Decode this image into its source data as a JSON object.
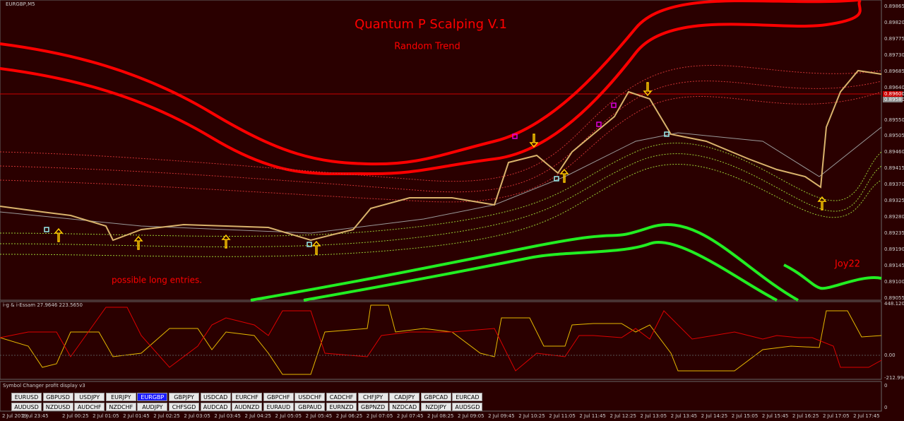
{
  "chart": {
    "symbol": "EURGBP,M5",
    "title": "Quantum P Scalping V.1",
    "subtitle": "Random Trend",
    "annotation": "possible long entries.",
    "author": "Joy22",
    "price_labels": [
      "0.89865",
      "0.89820",
      "0.89775",
      "0.89730",
      "0.89685",
      "0.89640",
      "0.89600",
      "0.89580",
      "0.89550",
      "0.89505",
      "0.89460",
      "0.89415",
      "0.89370",
      "0.89325",
      "0.89280",
      "0.89235",
      "0.89190",
      "0.89145",
      "0.89100",
      "0.89055"
    ],
    "time_labels": [
      "2 Jul 2019",
      "1 Jul 23:45",
      "2 Jul 00:25",
      "2 Jul 01:05",
      "2 Jul 01:45",
      "2 Jul 02:25",
      "2 Jul 03:05",
      "2 Jul 03:45",
      "2 Jul 04:25",
      "2 Jul 05:05",
      "2 Jul 05:45",
      "2 Jul 06:25",
      "2 Jul 07:05",
      "2 Jul 07:45",
      "2 Jul 08:25",
      "2 Jul 09:05",
      "2 Jul 09:45",
      "2 Jul 10:25",
      "2 Jul 11:05",
      "2 Jul 11:45",
      "2 Jul 12:25",
      "2 Jul 13:05",
      "2 Jul 13:45",
      "2 Jul 14:25",
      "2 Jul 15:05",
      "2 Jul 15:45",
      "2 Jul 16:25",
      "2 Jul 17:05",
      "2 Jul 17:45"
    ]
  },
  "indicator": {
    "label": "i-g & i-Essam 27.9646 223.5650",
    "axis_labels": [
      "448.1208",
      "0.00",
      "-212.9902"
    ]
  },
  "panel": {
    "label": "Symbol Changer profit display v3",
    "axis_labels": [
      "0",
      "0"
    ],
    "rows": [
      [
        "EURUSD",
        "GBPUSD",
        "USDJPY",
        "EURJPY",
        "EURGBP",
        "GBPJPY",
        "USDCAD",
        "EURCHF",
        "GBPCHF",
        "USDCHF",
        "CADCHF",
        "CHFJPY",
        "CADJPY",
        "GBPCAD",
        "EURCAD"
      ],
      [
        "AUDUSD",
        "NZDUSD",
        "AUDCHF",
        "NZDCHF",
        "AUDJPY",
        "CHFSGD",
        "AUDCAD",
        "AUDNZD",
        "EURAUD",
        "GBPAUD",
        "EURNZD",
        "GBPNZD",
        "NZDCAD",
        "NZDJPY",
        "AUDSGD"
      ]
    ],
    "selected": "EURGBP"
  }
}
